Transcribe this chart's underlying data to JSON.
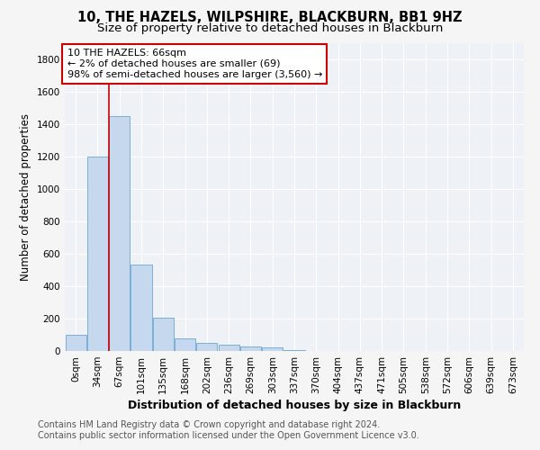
{
  "title": "10, THE HAZELS, WILPSHIRE, BLACKBURN, BB1 9HZ",
  "subtitle": "Size of property relative to detached houses in Blackburn",
  "xlabel": "Distribution of detached houses by size in Blackburn",
  "ylabel": "Number of detached properties",
  "bar_color": "#c5d8ed",
  "bar_edge_color": "#7bafd4",
  "categories": [
    "0sqm",
    "34sqm",
    "67sqm",
    "101sqm",
    "135sqm",
    "168sqm",
    "202sqm",
    "236sqm",
    "269sqm",
    "303sqm",
    "337sqm",
    "370sqm",
    "404sqm",
    "437sqm",
    "471sqm",
    "505sqm",
    "538sqm",
    "572sqm",
    "606sqm",
    "639sqm",
    "673sqm"
  ],
  "values": [
    100,
    1200,
    1450,
    530,
    205,
    75,
    50,
    40,
    30,
    20,
    5,
    2,
    1,
    0,
    0,
    0,
    0,
    0,
    0,
    0,
    0
  ],
  "ylim": [
    0,
    1900
  ],
  "yticks": [
    0,
    200,
    400,
    600,
    800,
    1000,
    1200,
    1400,
    1600,
    1800
  ],
  "red_line_x": 1.5,
  "annotation_line1": "10 THE HAZELS: 66sqm",
  "annotation_line2": "← 2% of detached houses are smaller (69)",
  "annotation_line3": "98% of semi-detached houses are larger (3,560) →",
  "annotation_box_color": "#ffffff",
  "annotation_border_color": "#cc0000",
  "footer_line1": "Contains HM Land Registry data © Crown copyright and database right 2024.",
  "footer_line2": "Contains public sector information licensed under the Open Government Licence v3.0.",
  "background_color": "#eef2f7",
  "grid_color": "#ffffff",
  "fig_bg_color": "#f5f5f5",
  "title_fontsize": 10.5,
  "subtitle_fontsize": 9.5,
  "ylabel_fontsize": 8.5,
  "xlabel_fontsize": 9,
  "tick_fontsize": 7.5,
  "annotation_fontsize": 8,
  "footer_fontsize": 7
}
